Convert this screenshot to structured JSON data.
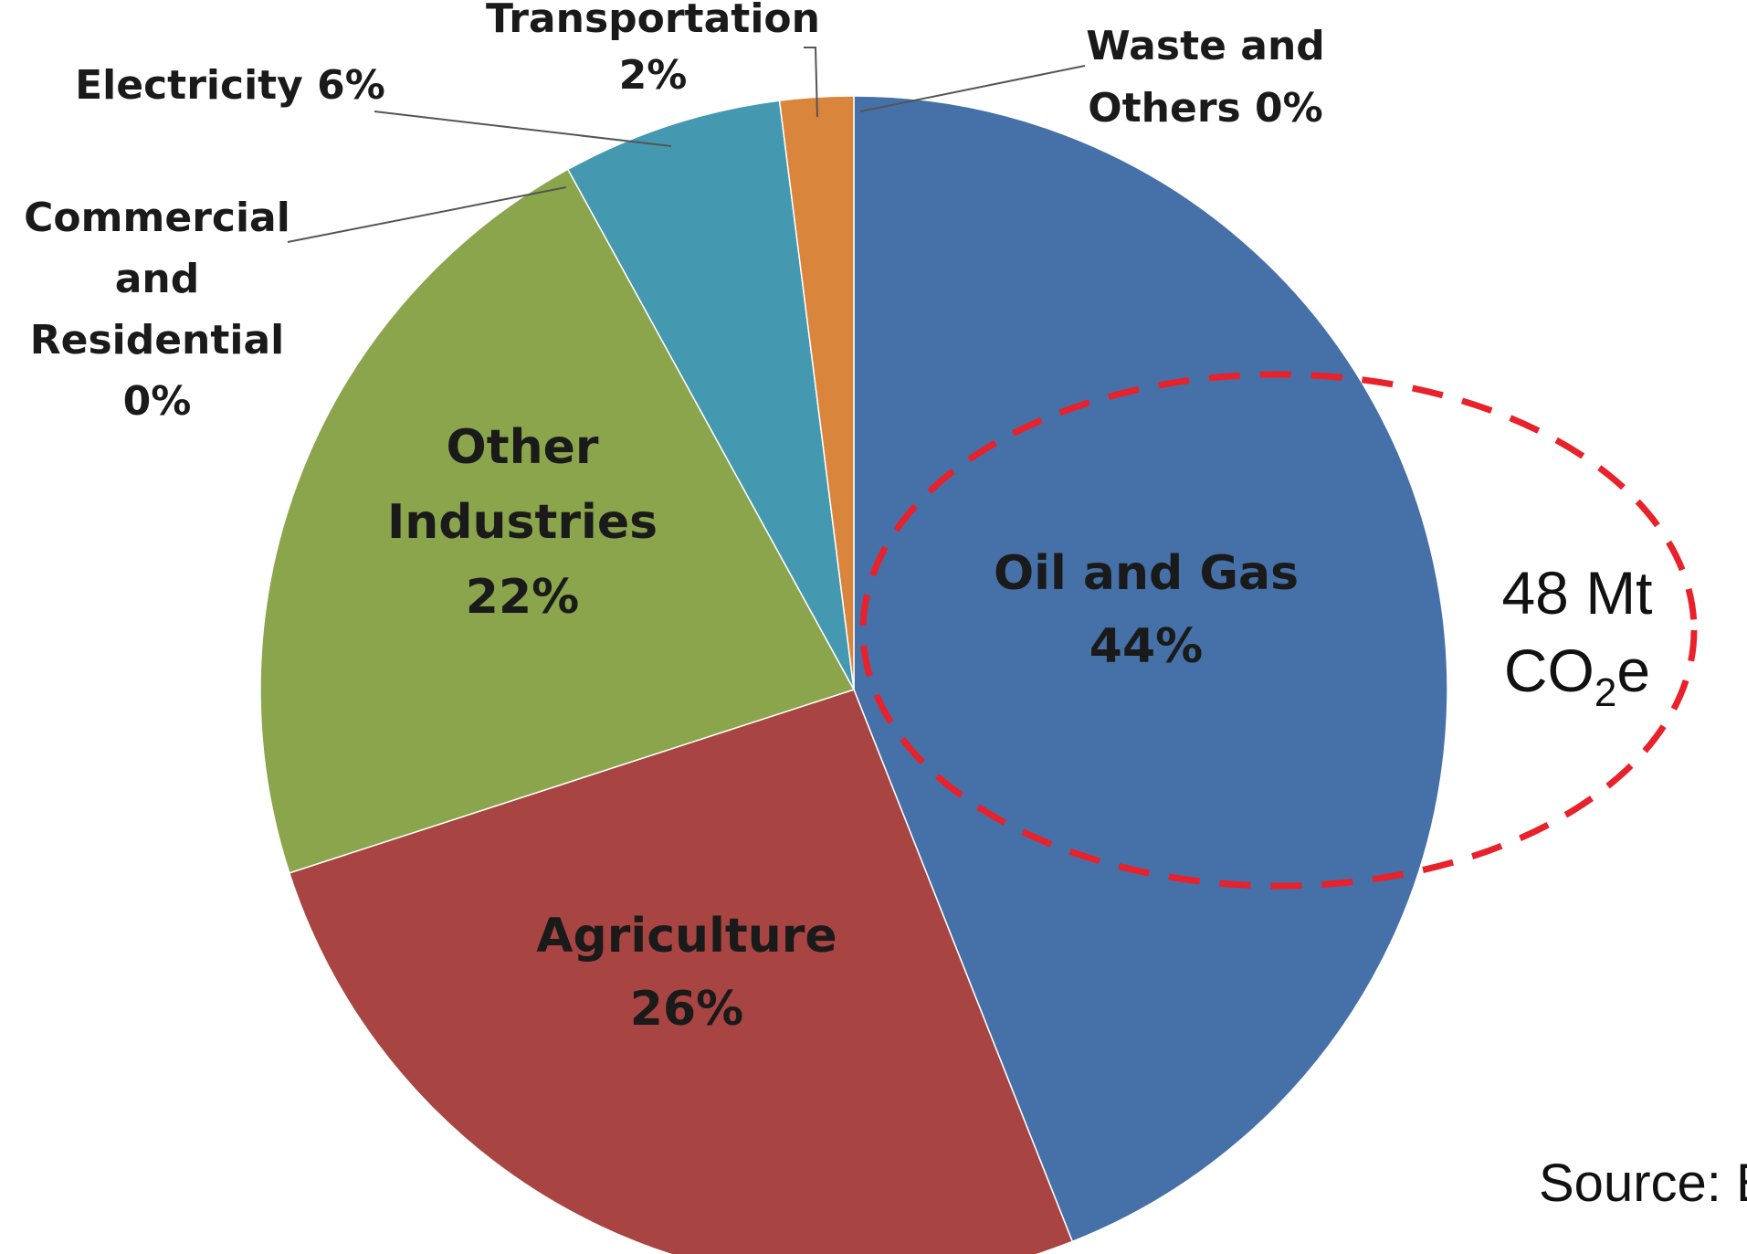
{
  "chart_data": {
    "type": "pie",
    "slices": [
      {
        "label_lines": [
          "Oil and Gas",
          "44%"
        ],
        "value": 44,
        "color": "#4571A8"
      },
      {
        "label_lines": [
          "Agriculture",
          "26%"
        ],
        "value": 26,
        "color": "#A84542"
      },
      {
        "label_lines": [
          "Other",
          "Industries",
          "22%"
        ],
        "value": 22,
        "color": "#8AA54B"
      },
      {
        "label_lines": [
          "Commercial",
          "and",
          "Residential",
          "0%"
        ],
        "value": 0,
        "color": "#6E548D"
      },
      {
        "label_lines": [
          "Electricity 6%"
        ],
        "value": 6,
        "color": "#4498B0"
      },
      {
        "label_lines": [
          "Transportation",
          "2%"
        ],
        "value": 2,
        "color": "#DA853C"
      },
      {
        "label_lines": [
          "Waste and",
          "Others 0%"
        ],
        "value": 0,
        "color": "#94A9CF"
      }
    ],
    "annotation": {
      "text": "48 Mt",
      "line2_main": "CO",
      "line2_sub": "2",
      "line2_end": "e",
      "highlight_color": "#E8212A"
    },
    "source_text": "Source: E"
  }
}
